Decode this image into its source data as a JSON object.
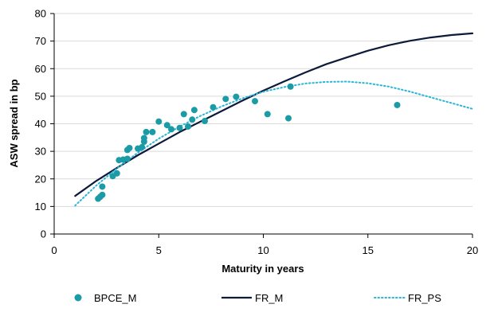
{
  "chart_data": {
    "type": "scatter",
    "xlabel": "Maturity in years",
    "ylabel": "ASW spread in bp",
    "xlim": [
      0,
      20
    ],
    "ylim": [
      0,
      80
    ],
    "x_ticks": [
      "0",
      "5",
      "10",
      "15",
      "20"
    ],
    "y_ticks": [
      "0",
      "10",
      "20",
      "30",
      "40",
      "50",
      "60",
      "70",
      "80"
    ],
    "grid": "horizontal",
    "legend": "bottom",
    "series": [
      {
        "name": "BPCE_M",
        "kind": "scatter",
        "color": "#1a9ba6",
        "points": [
          {
            "x": 2.1,
            "y": 12.8
          },
          {
            "x": 2.2,
            "y": 13.5
          },
          {
            "x": 2.3,
            "y": 14.2
          },
          {
            "x": 2.3,
            "y": 17.2
          },
          {
            "x": 2.8,
            "y": 21.0
          },
          {
            "x": 3.0,
            "y": 22.0
          },
          {
            "x": 3.1,
            "y": 26.8
          },
          {
            "x": 3.3,
            "y": 27.0
          },
          {
            "x": 3.5,
            "y": 27.3
          },
          {
            "x": 3.5,
            "y": 30.5
          },
          {
            "x": 3.6,
            "y": 31.2
          },
          {
            "x": 4.0,
            "y": 31.0
          },
          {
            "x": 4.2,
            "y": 31.5
          },
          {
            "x": 4.3,
            "y": 33.5
          },
          {
            "x": 4.3,
            "y": 34.8
          },
          {
            "x": 4.4,
            "y": 37.0
          },
          {
            "x": 4.7,
            "y": 37.0
          },
          {
            "x": 5.0,
            "y": 40.8
          },
          {
            "x": 5.4,
            "y": 39.5
          },
          {
            "x": 5.6,
            "y": 38.0
          },
          {
            "x": 6.0,
            "y": 38.5
          },
          {
            "x": 6.2,
            "y": 43.5
          },
          {
            "x": 6.4,
            "y": 39.0
          },
          {
            "x": 6.6,
            "y": 41.5
          },
          {
            "x": 6.7,
            "y": 45.0
          },
          {
            "x": 7.2,
            "y": 41.0
          },
          {
            "x": 7.6,
            "y": 46.0
          },
          {
            "x": 8.2,
            "y": 49.0
          },
          {
            "x": 8.7,
            "y": 49.8
          },
          {
            "x": 9.6,
            "y": 48.2
          },
          {
            "x": 10.2,
            "y": 43.5
          },
          {
            "x": 11.2,
            "y": 42.0
          },
          {
            "x": 11.3,
            "y": 53.5
          },
          {
            "x": 16.4,
            "y": 46.8
          }
        ]
      },
      {
        "name": "FR_M",
        "kind": "line",
        "style": "solid",
        "color": "#0d1a3a",
        "x": [
          1,
          2,
          3,
          4,
          5,
          6,
          7,
          8,
          9,
          10,
          11,
          12,
          13,
          14,
          15,
          16,
          17,
          18,
          19,
          20
        ],
        "y": [
          13.8,
          19.2,
          24.0,
          28.6,
          32.8,
          37.0,
          40.8,
          44.6,
          48.4,
          52.0,
          55.4,
          58.6,
          61.6,
          64.1,
          66.5,
          68.5,
          70.1,
          71.3,
          72.2,
          72.8
        ]
      },
      {
        "name": "FR_PS",
        "kind": "line",
        "style": "dotted",
        "color": "#29b6d8",
        "x": [
          1,
          2,
          3,
          4,
          5,
          6,
          7,
          8,
          9,
          10,
          11,
          12,
          13,
          14,
          15,
          16,
          17,
          18,
          19,
          20
        ],
        "y": [
          10.3,
          17.5,
          23.8,
          29.5,
          34.6,
          39.0,
          42.9,
          46.3,
          49.2,
          51.6,
          53.3,
          54.6,
          55.2,
          55.3,
          54.7,
          53.5,
          51.7,
          49.6,
          47.5,
          45.4
        ]
      }
    ]
  }
}
